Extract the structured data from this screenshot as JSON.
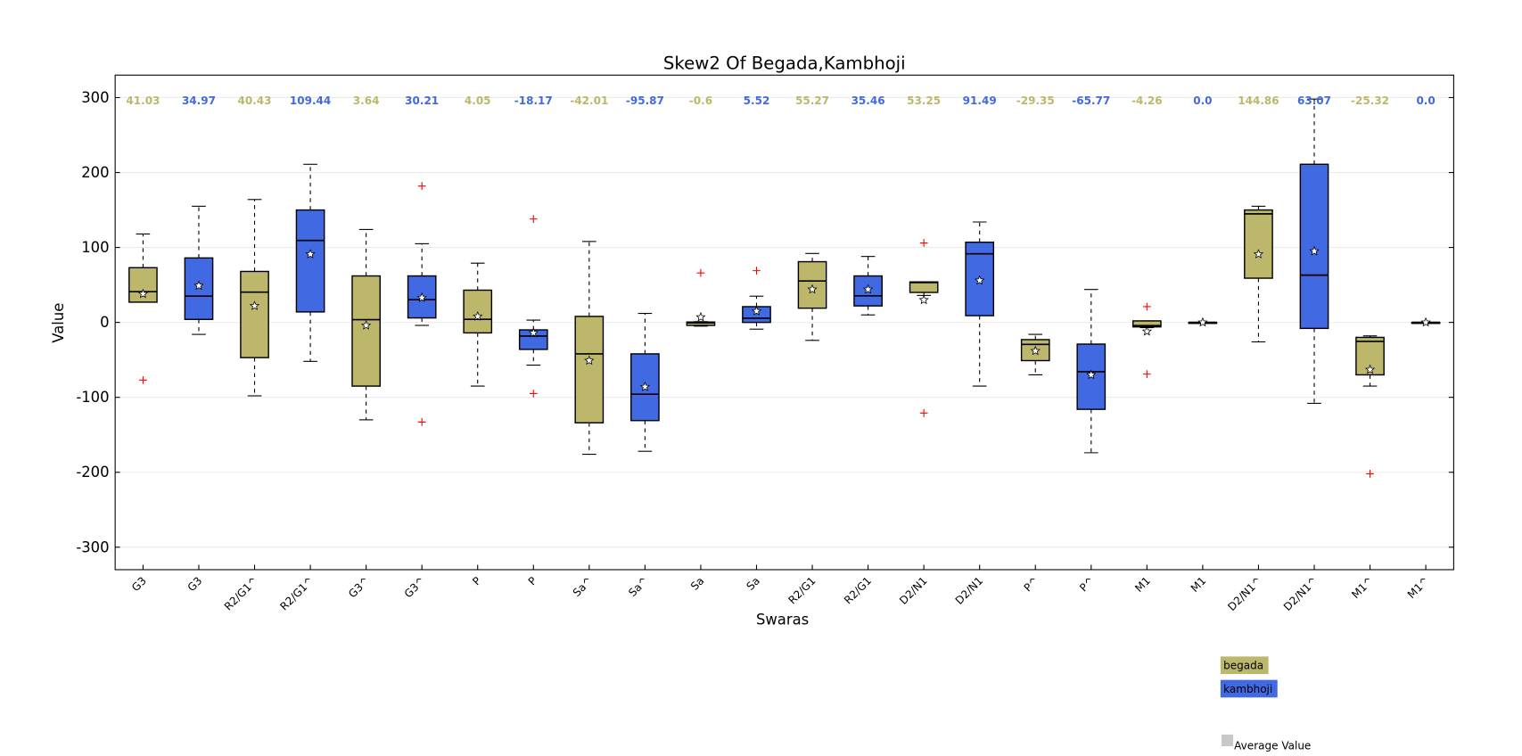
{
  "chart_data": {
    "type": "box",
    "title": "Skew2 Of Begada,Kambhoji",
    "x_label": "Swaras",
    "y_label": "Value",
    "ylim": [
      -330,
      330
    ],
    "yticks": [
      -300,
      -200,
      -100,
      0,
      100,
      200,
      300
    ],
    "grid": true,
    "series": [
      {
        "name": "begada",
        "color": "#bdb76b"
      },
      {
        "name": "kambhoji",
        "color": "#4169e1"
      }
    ],
    "mean_legend": "Average Value",
    "categories": [
      "G3",
      "G3",
      "R2/G1^",
      "R2/G1^",
      "G3^",
      "G3^",
      "P",
      "P",
      "Sa^",
      "Sa^",
      "Sa",
      "Sa",
      "R2/G1",
      "R2/G1",
      "D2/N1",
      "D2/N1",
      "P^",
      "P^",
      "M1",
      "M1",
      "D2/N1^",
      "D2/N1^",
      "M1^",
      "M1^"
    ],
    "whishi": [
      118,
      155,
      164,
      211,
      124,
      105,
      79,
      3,
      108,
      12,
      1,
      35,
      92,
      88,
      54,
      134,
      -16,
      44,
      2,
      0,
      155,
      298,
      -18,
      0
    ],
    "q3": [
      73,
      86,
      68,
      150,
      62,
      62,
      43,
      -10,
      8,
      -42,
      0.5,
      21,
      81,
      62,
      54,
      107,
      -23,
      -29,
      2,
      0,
      150,
      211,
      -20,
      0
    ],
    "median": [
      41.03,
      34.97,
      40.43,
      109.44,
      3.64,
      30.21,
      4.05,
      -18.17,
      -42.01,
      -95.87,
      -0.6,
      5.52,
      55.27,
      35.46,
      53.25,
      91.49,
      -29.35,
      -65.77,
      -4.26,
      0,
      144.86,
      63.07,
      -25.32,
      0
    ],
    "value_labels": [
      "41.03",
      "34.97",
      "40.43",
      "109.44",
      "3.64",
      "30.21",
      "4.05",
      "-18.17",
      "-42.01",
      "-95.87",
      "-0.6",
      "5.52",
      "55.27",
      "35.46",
      "53.25",
      "91.49",
      "-29.35",
      "-65.77",
      "-4.26",
      "0.0",
      "144.86",
      "63.07",
      "-25.32",
      "0.0"
    ],
    "q1": [
      27,
      4,
      -47,
      14,
      -85,
      6,
      -14,
      -36,
      -134,
      -131,
      -4,
      0,
      19,
      22,
      40,
      9,
      -51,
      -116,
      -6,
      0,
      59,
      -8,
      -70,
      0
    ],
    "whislo": [
      27,
      -16,
      -98,
      -52,
      -130,
      -4,
      -85,
      -57,
      -176,
      -172,
      -5,
      -9,
      -24,
      10,
      36,
      -85,
      -70,
      -174,
      -7,
      0,
      -26,
      -108,
      -85,
      0
    ],
    "mean": [
      38,
      49,
      22,
      91,
      -4,
      33,
      8,
      -14,
      -51,
      -86,
      7,
      15,
      44,
      44,
      30,
      56,
      -38,
      -70,
      -12,
      0,
      91,
      95,
      -63,
      0
    ],
    "outliers": [
      [
        -77
      ],
      [],
      [],
      [],
      [],
      [
        182,
        -133
      ],
      [],
      [
        138,
        -95
      ],
      [],
      [],
      [
        66
      ],
      [
        69
      ],
      [],
      [],
      [
        106,
        -121
      ],
      [],
      [],
      [],
      [
        21,
        -69
      ],
      [],
      [],
      [],
      [
        -202
      ],
      []
    ]
  }
}
